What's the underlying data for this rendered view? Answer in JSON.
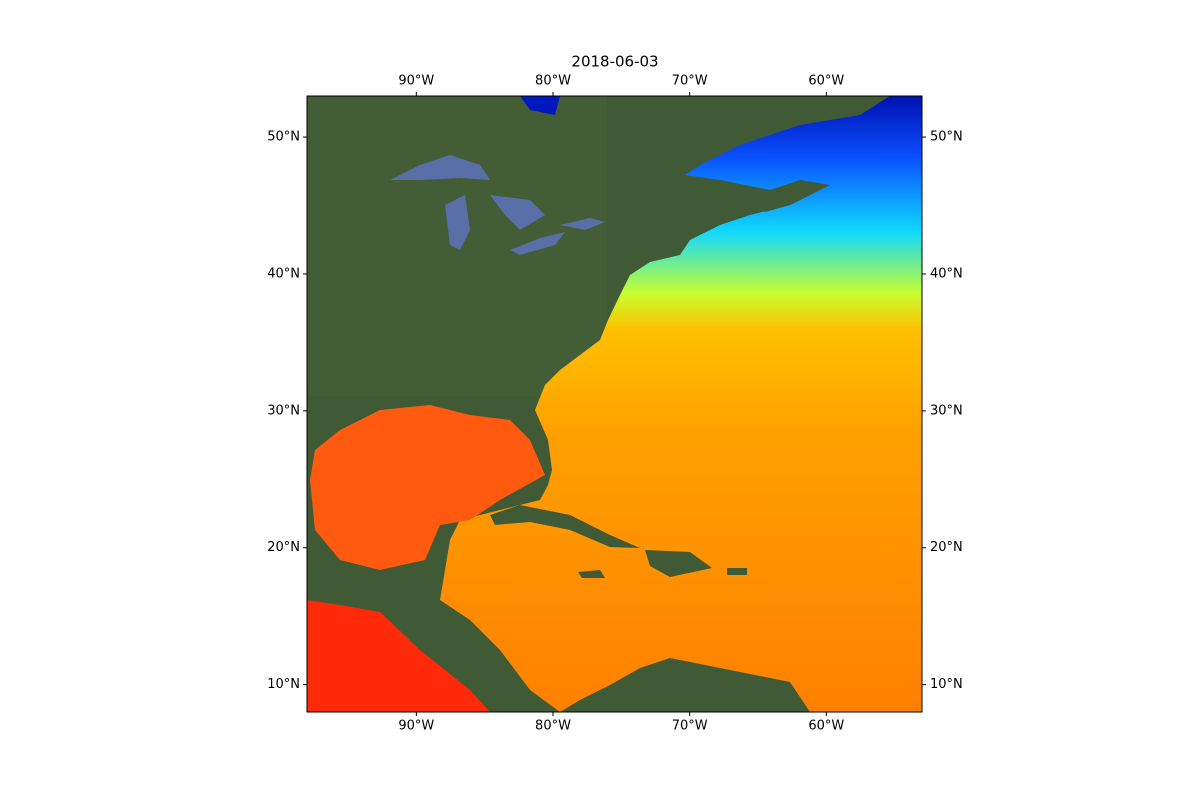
{
  "chart_data": {
    "type": "map",
    "title": "2018-06-03",
    "xlim": [
      -98,
      -53
    ],
    "ylim": [
      8,
      53
    ],
    "xticks": [
      {
        "value": -90,
        "label": "90°W"
      },
      {
        "value": -80,
        "label": "80°W"
      },
      {
        "value": -70,
        "label": "70°W"
      },
      {
        "value": -60,
        "label": "60°W"
      }
    ],
    "yticks": [
      {
        "value": 50,
        "label": "50°N"
      },
      {
        "value": 40,
        "label": "40°N"
      },
      {
        "value": 30,
        "label": "30°N"
      },
      {
        "value": 20,
        "label": "20°N"
      },
      {
        "value": 10,
        "label": "10°N"
      }
    ]
  }
}
